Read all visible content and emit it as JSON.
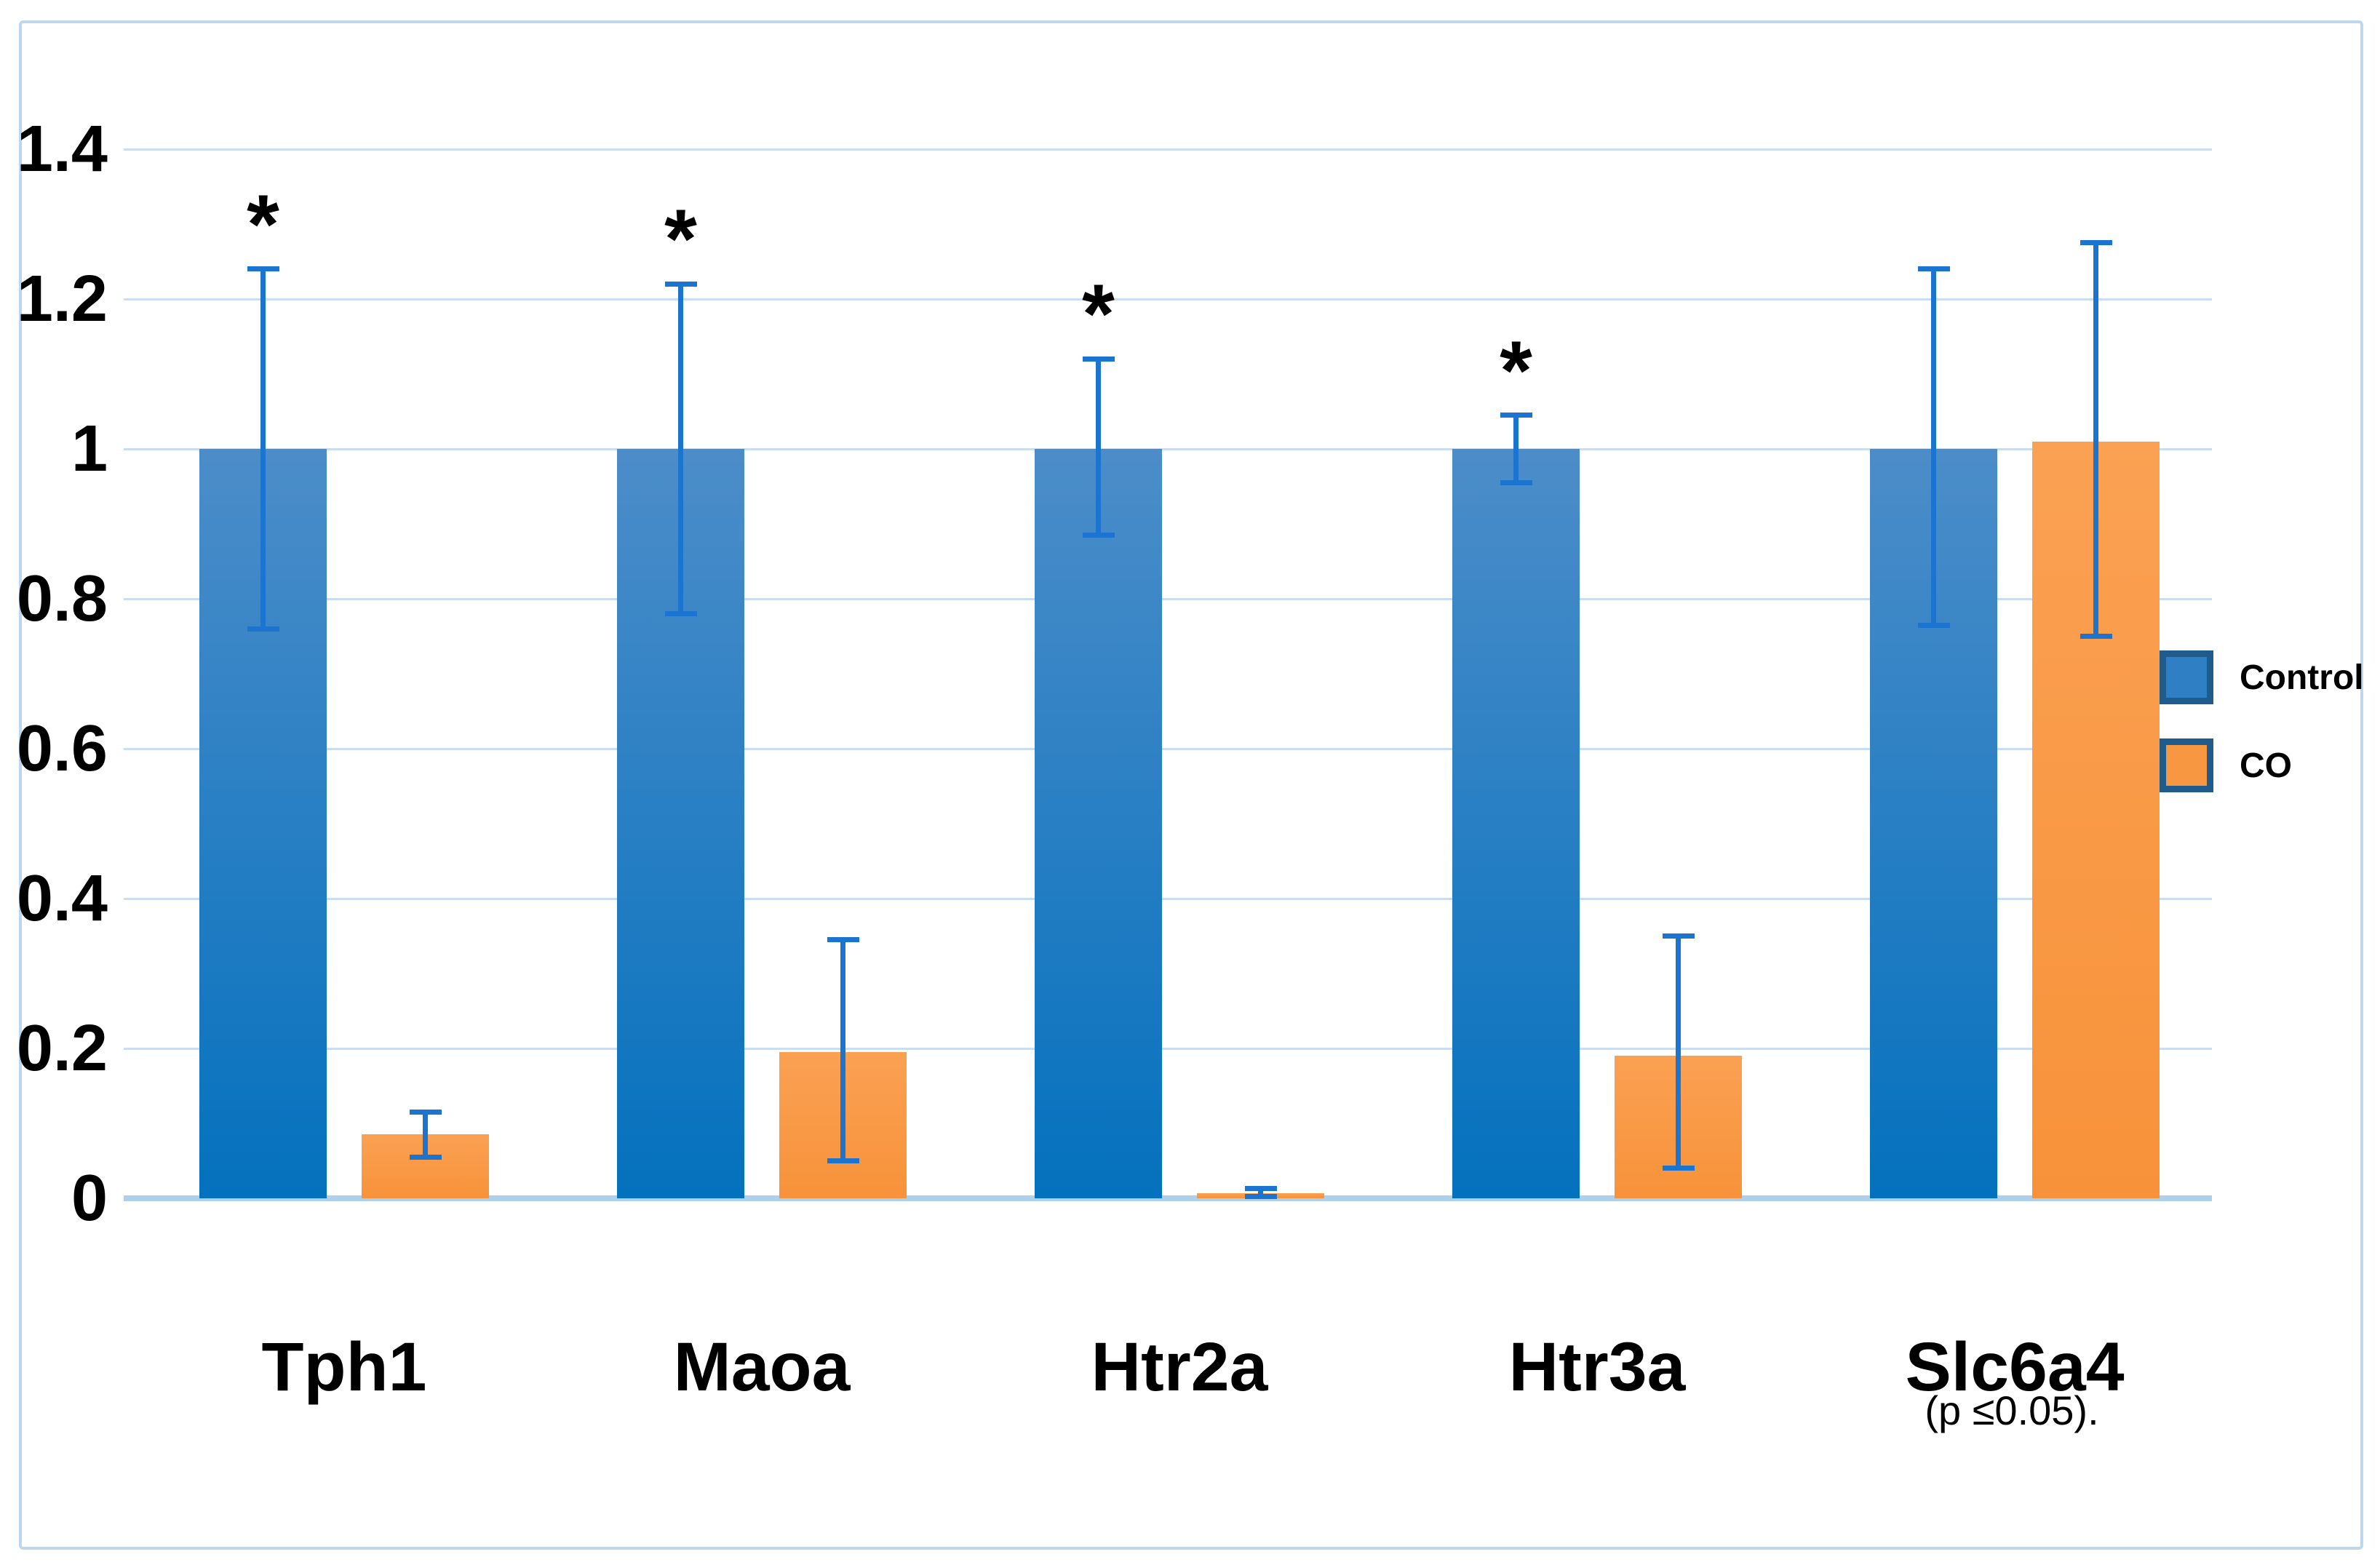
{
  "chart_data": {
    "type": "bar",
    "title": "",
    "xlabel": "",
    "ylabel": "",
    "categories": [
      "Tph1",
      "Maoa",
      "Htr2a",
      "Htr3a",
      "Slc6a4"
    ],
    "series": [
      {
        "name": "Control",
        "values": [
          1.0,
          1.0,
          1.0,
          1.0,
          1.0
        ],
        "error_low": [
          0.76,
          0.78,
          0.885,
          0.955,
          0.765
        ],
        "error_high": [
          1.24,
          1.22,
          1.12,
          1.045,
          1.24
        ],
        "significant": [
          true,
          true,
          true,
          true,
          false
        ]
      },
      {
        "name": "CO",
        "values": [
          0.085,
          0.195,
          0.007,
          0.19,
          1.01
        ],
        "error_low": [
          0.055,
          0.05,
          0.002,
          0.04,
          0.75
        ],
        "error_high": [
          0.115,
          0.345,
          0.013,
          0.35,
          1.275
        ],
        "significant": [
          false,
          false,
          false,
          false,
          false
        ]
      }
    ],
    "ylim": [
      0,
      1.4
    ],
    "yticks": [
      0,
      0.2,
      0.4,
      0.6,
      0.8,
      1,
      1.2,
      1.4
    ],
    "ytick_labels": [
      "0",
      "0.2",
      "0.4",
      "0.6",
      "0.8",
      "1",
      "1.2",
      "1.4"
    ],
    "grid": true,
    "legend_position": "right",
    "significance_marker": "*",
    "annotation": "(p ≤0.05)."
  },
  "legend": {
    "items": [
      {
        "label": "Control"
      },
      {
        "label": "CO"
      }
    ]
  },
  "colors": {
    "series": [
      {
        "bar_top": "#4C8DC9",
        "bar_bottom": "#0471BE",
        "legend_fill": "#2E7FC4"
      },
      {
        "bar_top": "#FAA153",
        "bar_bottom": "#F8923A",
        "legend_fill": "#F89742"
      }
    ],
    "error_bar": "#1B74D0",
    "gridline": "#C9DEF2",
    "baseline": "#AFCFEA",
    "frame_border": "#BDD7EE",
    "legend_swatch_border": "#1F5C8C",
    "text": "#000000",
    "background": "#FFFFFF"
  }
}
